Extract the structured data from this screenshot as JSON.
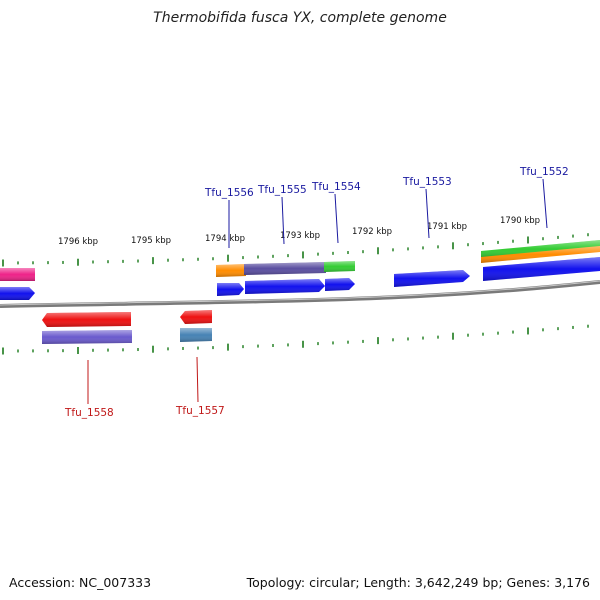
{
  "title": "Thermobifida fusca YX, complete genome",
  "footer": {
    "accession": "Accession: NC_007333",
    "summary": "Topology: circular; Length: 3,642,249 bp; Genes: 3,176"
  },
  "colors": {
    "backbone": "#7a7a7a",
    "tick": "#1a7a1a",
    "forward_label": "#1a1aa0",
    "reverse_label": "#c01818",
    "cds_blue": "#1111ee",
    "red": "#ee1111",
    "purple": "#6a5acd",
    "steelblue": "#4682b4",
    "orange": "#ff8c00",
    "green": "#33cc33",
    "pink": "#ee2288"
  },
  "scale_labels": [
    {
      "text": "1796 kbp"
    },
    {
      "text": "1795 kbp"
    },
    {
      "text": "1794 kbp"
    },
    {
      "text": "1793 kbp"
    },
    {
      "text": "1792 kbp"
    },
    {
      "text": "1791 kbp"
    },
    {
      "text": "1790 kbp"
    }
  ],
  "genes": [
    {
      "label": "Tfu_1556",
      "strand": "+"
    },
    {
      "label": "Tfu_1555",
      "strand": "+"
    },
    {
      "label": "Tfu_1554",
      "strand": "+"
    },
    {
      "label": "Tfu_1553",
      "strand": "+"
    },
    {
      "label": "Tfu_1552",
      "strand": "+"
    },
    {
      "label": "Tfu_1558",
      "strand": "-"
    },
    {
      "label": "Tfu_1557",
      "strand": "-"
    }
  ]
}
